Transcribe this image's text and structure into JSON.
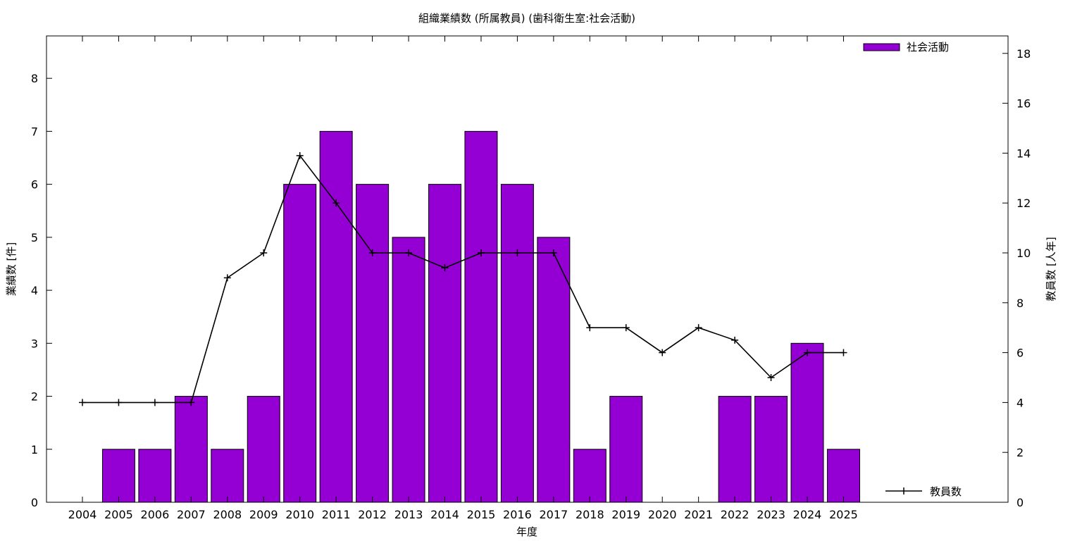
{
  "chart_data": {
    "type": "bar",
    "title": "組織業績数 (所属教員) (歯科衛生室:社会活動)",
    "xlabel": "年度",
    "ylabel": "業績数 [件]",
    "y2label": "教員数 [人年]",
    "categories": [
      "2004",
      "2005",
      "2006",
      "2007",
      "2008",
      "2009",
      "2010",
      "2011",
      "2012",
      "2013",
      "2014",
      "2015",
      "2016",
      "2017",
      "2018",
      "2019",
      "2020",
      "2021",
      "2022",
      "2023",
      "2024",
      "2025"
    ],
    "ylim": [
      0,
      8.8
    ],
    "yticks": [
      0,
      1,
      2,
      3,
      4,
      5,
      6,
      7,
      8
    ],
    "y2lim": [
      0,
      18.7
    ],
    "y2ticks": [
      0,
      2,
      4,
      6,
      8,
      10,
      12,
      14,
      16,
      18
    ],
    "series": [
      {
        "name": "社会活動",
        "type": "bar",
        "axis": "left",
        "color": "#9400d3",
        "values": [
          0,
          1,
          1,
          2,
          1,
          2,
          6,
          7,
          6,
          5,
          6,
          7,
          6,
          5,
          1,
          2,
          0,
          0,
          2,
          2,
          3,
          1
        ]
      },
      {
        "name": "教員数",
        "type": "line",
        "axis": "right",
        "color": "#000000",
        "values": [
          4,
          4,
          4,
          4,
          9,
          10,
          13.9,
          12,
          10,
          10,
          9.4,
          10,
          10,
          10,
          7,
          7,
          6,
          7,
          6.5,
          5,
          6,
          6
        ]
      }
    ],
    "grid": false,
    "legend_position": [
      "top-right",
      "bottom-right"
    ]
  }
}
